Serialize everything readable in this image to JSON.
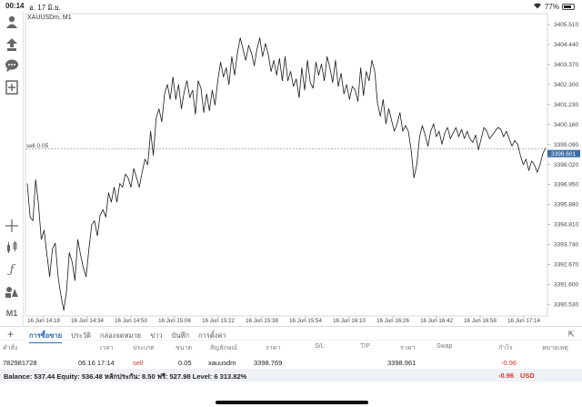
{
  "statusbar": {
    "time": "00:14",
    "date": "อ. 17 มิ.ย.",
    "battery": "77%",
    "battery_level": 0.77
  },
  "toolbar": {
    "icons": [
      "account-icon",
      "trade-up-icon",
      "chat-icon",
      "add-chart-icon",
      "crosshair-icon",
      "candles-icon",
      "indicator-f-icon",
      "objects-icon",
      "timeframe-label"
    ],
    "timeframe": "M1"
  },
  "chart": {
    "symbol_label": "XAUUSDm, M1",
    "order_line_label": "sell 0.05",
    "current_price": "3398.601",
    "line_color": "#1a1a1a",
    "price_tag_color": "#3a6ea5"
  },
  "chart_data": {
    "type": "line",
    "price_ticks": [
      "3405.510",
      "3404.440",
      "3403.370",
      "3402.300",
      "3401.230",
      "3400.160",
      "3399.090",
      "3398.020",
      "3396.950",
      "3395.880",
      "3394.810",
      "3393.740",
      "3392.670",
      "3391.600",
      "3390.530"
    ],
    "ylim": [
      3390.1,
      3405.9
    ],
    "time_ticks": [
      "16 Jun 14:18",
      "16 Jun 14:34",
      "16 Jun 14:50",
      "16 Jun 15:06",
      "16 Jun 15:22",
      "16 Jun 15:38",
      "16 Jun 15:54",
      "16 Jun 16:10",
      "16 Jun 16:26",
      "16 Jun 16:42",
      "16 Jun 16:58",
      "16 Jun 17:14"
    ],
    "order_price": 3398.85,
    "series": [
      {
        "values": [
          3397.0,
          3395.2,
          3395.0,
          3397.2,
          3395.9,
          3394.0,
          3394.5,
          3393.2,
          3392.0,
          3393.5,
          3393.8,
          3392.0,
          3391.0,
          3390.2,
          3391.2,
          3393.3,
          3392.8,
          3391.8,
          3394.0,
          3393.2,
          3392.5,
          3392.0,
          3393.5,
          3394.8,
          3395.0,
          3394.2,
          3395.3,
          3395.6,
          3395.2,
          3396.5,
          3396.0,
          3396.8,
          3396.0,
          3397.0,
          3396.8,
          3397.5,
          3397.3,
          3396.8,
          3397.8,
          3397.3,
          3396.8,
          3397.6,
          3398.3,
          3398.0,
          3399.8,
          3398.5,
          3400.5,
          3401.0,
          3400.3,
          3401.8,
          3402.3,
          3401.5,
          3402.7,
          3401.5,
          3402.3,
          3401.0,
          3401.9,
          3402.5,
          3401.6,
          3402.0,
          3400.7,
          3402.5,
          3402.1,
          3400.8,
          3401.8,
          3400.9,
          3402.0,
          3401.2,
          3402.5,
          3403.5,
          3402.7,
          3403.2,
          3402.3,
          3403.8,
          3402.8,
          3404.0,
          3404.8,
          3404.2,
          3403.6,
          3404.4,
          3404.0,
          3403.3,
          3404.2,
          3404.8,
          3403.8,
          3404.5,
          3403.9,
          3403.0,
          3403.6,
          3402.8,
          3403.7,
          3402.5,
          3403.8,
          3402.5,
          3403.0,
          3402.2,
          3402.6,
          3401.6,
          3403.2,
          3402.0,
          3403.6,
          3402.4,
          3402.1,
          3403.5,
          3402.8,
          3403.4,
          3402.5,
          3403.8,
          3403.2,
          3402.4,
          3403.6,
          3402.2,
          3402.9,
          3401.8,
          3402.3,
          3401.5,
          3402.2,
          3402.0,
          3401.4,
          3403.2,
          3401.7,
          3403.0,
          3402.5,
          3403.6,
          3403.0,
          3401.3,
          3400.6,
          3401.5,
          3400.2,
          3401.0,
          3400.4,
          3399.8,
          3400.2,
          3400.8,
          3399.8,
          3400.1,
          3399.8,
          3398.8,
          3397.3,
          3398.0,
          3399.5,
          3400.1,
          3399.6,
          3399.0,
          3399.8,
          3400.2,
          3399.5,
          3399.8,
          3399.1,
          3399.7,
          3400.0,
          3399.4,
          3399.7,
          3400.0,
          3399.5,
          3399.9,
          3399.4,
          3399.8,
          3399.4,
          3399.2,
          3399.6,
          3398.8,
          3399.4,
          3400.0,
          3399.8,
          3399.4,
          3399.6,
          3399.8,
          3400.0,
          3399.9,
          3399.5,
          3399.8,
          3399.4,
          3399.0,
          3399.3,
          3399.1,
          3398.5,
          3398.0,
          3398.3,
          3397.7,
          3398.2,
          3398.0,
          3397.6,
          3398.0,
          3398.6,
          3398.9
        ]
      }
    ]
  },
  "tabs": {
    "items": [
      "การซื้อขาย",
      "ประวัติ",
      "กล่องจดหมาย",
      "ข่าว",
      "บันทึก",
      "การตั้งค่า"
    ],
    "active": 0
  },
  "orders": {
    "headers": [
      "คำสั่ง",
      "เวลา",
      "ประเภท",
      "ขนาด",
      "สัญลักษณ์",
      "ราคา",
      "S/L",
      "T/P",
      "ราคา",
      "Swap",
      "กำไร",
      "หมายเหตุ"
    ],
    "rows": [
      {
        "ticket": "782981728",
        "time": "06.16 17:14",
        "type": "sell",
        "volume": "0.05",
        "symbol": "xauusdm",
        "open_price": "3398.769",
        "sl": "",
        "tp": "",
        "price": "3398.961",
        "swap": "",
        "profit": "-0.96",
        "comment": ""
      }
    ]
  },
  "balance": {
    "text": "Balance: 537.44 Equity: 536.48 หลักประกัน: 8.50 ฟรี: 527.98 Level: 6 313.82%",
    "profit": "-0.96",
    "currency": "USD"
  }
}
